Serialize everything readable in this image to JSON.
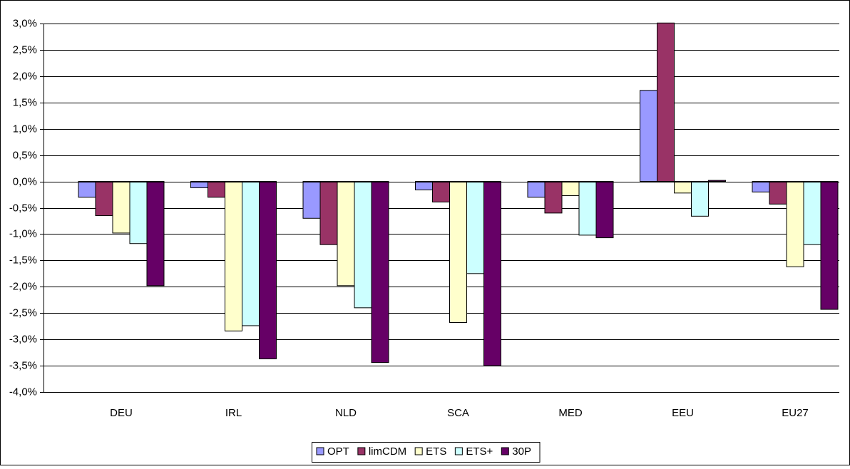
{
  "chart_data": {
    "type": "bar",
    "categories": [
      "DEU",
      "IRL",
      "NLD",
      "SCA",
      "MED",
      "EEU",
      "EU27"
    ],
    "series": [
      {
        "name": "OPT",
        "color": "#9999ff",
        "values": [
          -0.3,
          -0.12,
          -0.7,
          -0.16,
          -0.3,
          1.73,
          -0.2
        ]
      },
      {
        "name": "limCDM",
        "color": "#993366",
        "values": [
          -0.65,
          -0.3,
          -1.2,
          -0.39,
          -0.6,
          3.01,
          -0.43
        ]
      },
      {
        "name": "ETS",
        "color": "#ffffcc",
        "values": [
          -0.98,
          -2.84,
          -1.98,
          -2.68,
          -0.27,
          -0.22,
          -1.62
        ]
      },
      {
        "name": "ETS+",
        "color": "#ccffff",
        "values": [
          -1.18,
          -2.74,
          -2.4,
          -1.75,
          -1.02,
          -0.66,
          -1.2
        ]
      },
      {
        "name": "30P",
        "color": "#660066",
        "values": [
          -1.98,
          -3.37,
          -3.44,
          -3.5,
          -1.07,
          0.02,
          -2.43
        ]
      }
    ],
    "ylim": [
      -4,
      3
    ],
    "yticks": [
      {
        "value": -4,
        "label": "-4,0%"
      },
      {
        "value": -3.5,
        "label": "-3,5%"
      },
      {
        "value": -3,
        "label": "-3,0%"
      },
      {
        "value": -2.5,
        "label": "-2,5%"
      },
      {
        "value": -2,
        "label": "-2,0%"
      },
      {
        "value": -1.5,
        "label": "-1,5%"
      },
      {
        "value": -1,
        "label": "-1,0%"
      },
      {
        "value": -0.5,
        "label": "-0,5%"
      },
      {
        "value": 0,
        "label": "0,0%"
      },
      {
        "value": 0.5,
        "label": "0,5%"
      },
      {
        "value": 1,
        "label": "1,0%"
      },
      {
        "value": 1.5,
        "label": "1,5%"
      },
      {
        "value": 2,
        "label": "2,0%"
      },
      {
        "value": 2.5,
        "label": "2,5%"
      },
      {
        "value": 3,
        "label": "3,0%"
      }
    ],
    "grid": true,
    "legend": "bottom"
  }
}
